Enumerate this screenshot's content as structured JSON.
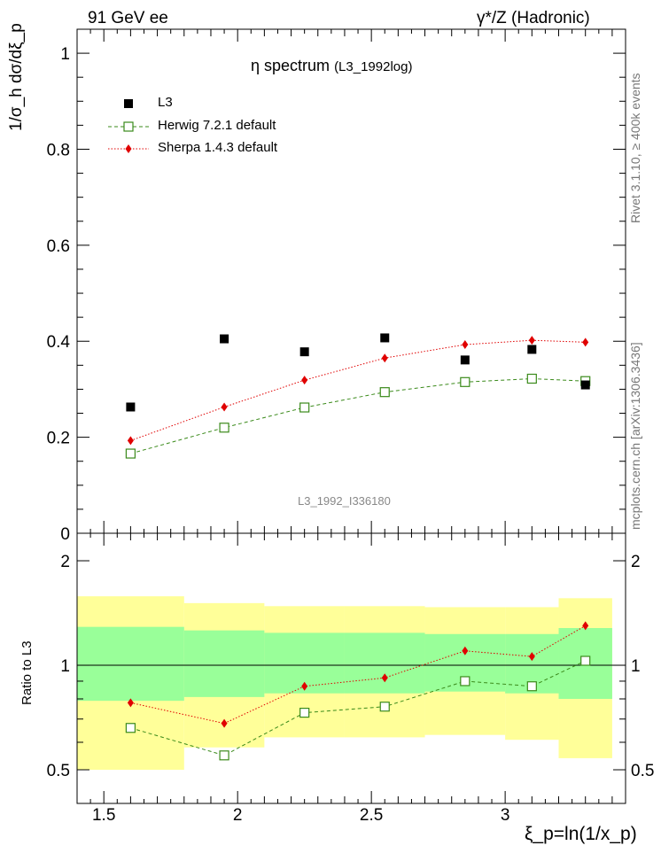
{
  "header": {
    "left": "91 GeV ee",
    "right": "γ*/Z (Hadronic)"
  },
  "side_text": {
    "top": "Rivet 3.1.10, ≥ 400k events",
    "bottom": "mcplots.cern.ch [arXiv:1306.3436]"
  },
  "plot_title": "η spectrum",
  "plot_subtitle": "(L3_1992log)",
  "plot_id": "L3_1992_I336180",
  "ylabel_main": "1/σ_h dσ/dξ_p",
  "ylabel_ratio": "Ratio to L3",
  "xlabel": "ξ_p=ln(1/x_p)",
  "colors": {
    "data": "#000000",
    "herwig": "#3a8a1a",
    "sherpa": "#e00000",
    "band_outer": "#ffff99",
    "band_inner": "#99ff99"
  },
  "chart_data": {
    "type": "scatter",
    "x": [
      1.6,
      1.95,
      2.25,
      2.55,
      2.85,
      3.1,
      3.3
    ],
    "bin_edges": [
      1.4,
      1.8,
      2.1,
      2.4,
      2.7,
      3.0,
      3.2,
      3.4
    ],
    "xlim": [
      1.4,
      3.45
    ],
    "ylim_main": [
      0,
      1.05
    ],
    "ylim_ratio": [
      0.4,
      2.4
    ],
    "xticks": [
      "1.5",
      "2",
      "2.5",
      "3"
    ],
    "yticks_main": [
      "0",
      "0.2",
      "0.4",
      "0.6",
      "0.8",
      "1"
    ],
    "yticks_ratio": [
      "0.5",
      "1",
      "2"
    ],
    "series": [
      {
        "name": "L3",
        "marker": "filled-square",
        "values": [
          0.263,
          0.405,
          0.378,
          0.407,
          0.361,
          0.383,
          0.309
        ]
      },
      {
        "name": "Herwig 7.2.1 default",
        "marker": "open-square",
        "line": "dashed",
        "values": [
          0.166,
          0.22,
          0.262,
          0.294,
          0.315,
          0.322,
          0.317
        ]
      },
      {
        "name": "Sherpa 1.4.3 default",
        "marker": "diamond",
        "line": "dotted",
        "values": [
          0.193,
          0.263,
          0.319,
          0.365,
          0.393,
          0.402,
          0.398
        ]
      }
    ],
    "ratio": {
      "herwig": [
        0.66,
        0.55,
        0.73,
        0.76,
        0.9,
        0.87,
        1.03
      ],
      "sherpa": [
        0.78,
        0.68,
        0.87,
        0.92,
        1.1,
        1.06,
        1.3
      ],
      "band_outer": [
        [
          0.5,
          1.58
        ],
        [
          0.58,
          1.51
        ],
        [
          0.62,
          1.48
        ],
        [
          0.62,
          1.48
        ],
        [
          0.63,
          1.47
        ],
        [
          0.61,
          1.47
        ],
        [
          0.54,
          1.56
        ]
      ],
      "band_inner": [
        [
          0.79,
          1.29
        ],
        [
          0.81,
          1.26
        ],
        [
          0.83,
          1.24
        ],
        [
          0.83,
          1.24
        ],
        [
          0.84,
          1.23
        ],
        [
          0.83,
          1.23
        ],
        [
          0.8,
          1.28
        ]
      ]
    }
  }
}
